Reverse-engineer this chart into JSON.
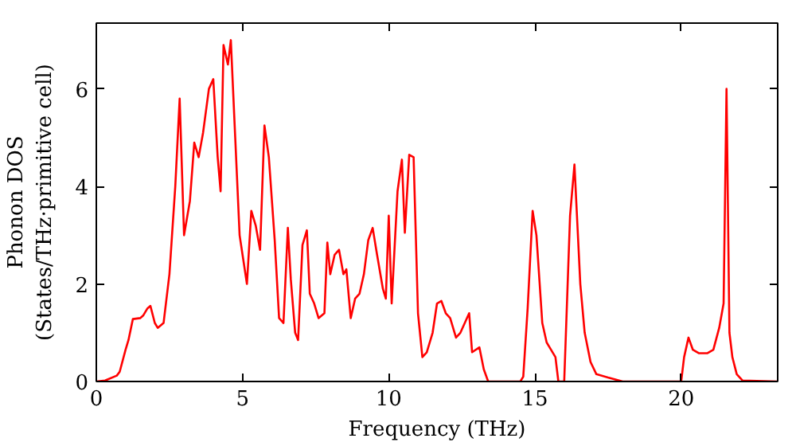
{
  "chart_data": {
    "type": "line",
    "xlabel": "Frequency (THz)",
    "ylabel": "Phonon DOS\n(States/THz·primitive cell)",
    "xlim": [
      0,
      23.3
    ],
    "ylim": [
      0,
      7.35
    ],
    "xticks": [
      0,
      5,
      10,
      15,
      20
    ],
    "yticks": [
      0,
      2,
      4,
      6
    ],
    "grid": false,
    "marker": "none",
    "line_style": "solid",
    "series": [
      {
        "color": "#ff0000",
        "x": [
          0,
          0.3,
          0.7,
          0.8,
          1.0,
          1.1,
          1.25,
          1.5,
          1.6,
          1.75,
          1.85,
          2.0,
          2.1,
          2.3,
          2.5,
          2.7,
          2.85,
          3.0,
          3.2,
          3.35,
          3.5,
          3.65,
          3.85,
          4.0,
          4.15,
          4.25,
          4.35,
          4.5,
          4.6,
          4.75,
          4.9,
          5.05,
          5.15,
          5.3,
          5.45,
          5.6,
          5.75,
          5.9,
          6.1,
          6.25,
          6.4,
          6.55,
          6.65,
          6.8,
          6.9,
          7.05,
          7.2,
          7.3,
          7.45,
          7.6,
          7.8,
          7.9,
          8.0,
          8.15,
          8.3,
          8.45,
          8.55,
          8.7,
          8.85,
          9.0,
          9.15,
          9.3,
          9.45,
          9.6,
          9.8,
          9.9,
          10.0,
          10.1,
          10.3,
          10.45,
          10.55,
          10.7,
          10.85,
          11.0,
          11.15,
          11.3,
          11.5,
          11.65,
          11.8,
          11.95,
          12.1,
          12.3,
          12.45,
          12.6,
          12.75,
          12.85,
          13.1,
          13.25,
          13.4,
          14.5,
          14.6,
          14.75,
          14.92,
          15.05,
          15.25,
          15.4,
          15.5,
          15.7,
          15.8,
          16.0,
          16.2,
          16.35,
          16.55,
          16.7,
          16.9,
          17.1,
          17.5,
          18.0,
          20.0,
          20.1,
          20.25,
          20.4,
          20.6,
          20.9,
          21.1,
          21.3,
          21.45,
          21.55,
          21.65,
          21.75,
          21.9,
          22.1,
          23.3
        ],
        "values": [
          0,
          0.02,
          0.12,
          0.2,
          0.65,
          0.85,
          1.28,
          1.3,
          1.35,
          1.5,
          1.55,
          1.2,
          1.1,
          1.2,
          2.2,
          4.0,
          5.8,
          3.0,
          3.7,
          4.9,
          4.6,
          5.1,
          6.0,
          6.2,
          4.6,
          3.9,
          6.9,
          6.5,
          7.0,
          5.0,
          3.0,
          2.4,
          2.0,
          3.5,
          3.2,
          2.7,
          5.25,
          4.6,
          2.9,
          1.3,
          1.2,
          3.15,
          2.1,
          1.0,
          0.85,
          2.8,
          3.1,
          1.8,
          1.6,
          1.3,
          1.4,
          2.85,
          2.2,
          2.6,
          2.7,
          2.2,
          2.3,
          1.3,
          1.7,
          1.8,
          2.2,
          2.9,
          3.15,
          2.6,
          1.9,
          1.7,
          3.4,
          1.6,
          3.9,
          4.55,
          3.05,
          4.65,
          4.6,
          1.4,
          0.5,
          0.6,
          1.0,
          1.6,
          1.65,
          1.4,
          1.3,
          0.9,
          1.0,
          1.2,
          1.4,
          0.6,
          0.7,
          0.25,
          0.0,
          0.0,
          0.1,
          1.5,
          3.5,
          3.0,
          1.2,
          0.8,
          0.7,
          0.5,
          0.0,
          0.0,
          3.4,
          4.45,
          2.0,
          1.0,
          0.4,
          0.15,
          0.08,
          0.0,
          0.0,
          0.5,
          0.9,
          0.65,
          0.58,
          0.58,
          0.65,
          1.1,
          1.6,
          6.0,
          1.0,
          0.5,
          0.15,
          0.02,
          0.0
        ]
      }
    ]
  }
}
